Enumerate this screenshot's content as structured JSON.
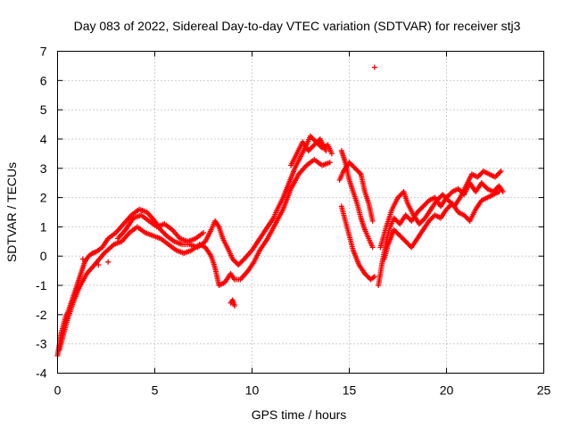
{
  "chart_data": {
    "type": "scatter",
    "title": "Day 083 of 2022, Sidereal Day-to-day VTEC variation (SDTVAR) for receiver stj3",
    "xlabel": "GPS time / hours",
    "ylabel": "SDTVAR / TECUs",
    "xlim": [
      0,
      25
    ],
    "ylim": [
      -4,
      7
    ],
    "xticks": [
      0,
      5,
      10,
      15,
      20,
      25
    ],
    "yticks": [
      -4,
      -3,
      -2,
      -1,
      0,
      1,
      2,
      3,
      4,
      5,
      6,
      7
    ],
    "grid": true,
    "marker": "+",
    "series": [
      {
        "name": "SDTVAR",
        "color": "#ff0000",
        "tracks": [
          [
            [
              0.0,
              -3.4
            ],
            [
              0.1,
              -3.0
            ],
            [
              0.2,
              -2.6
            ],
            [
              0.4,
              -2.1
            ],
            [
              0.6,
              -1.8
            ],
            [
              0.8,
              -1.4
            ],
            [
              1.0,
              -1.0
            ],
            [
              1.2,
              -0.6
            ],
            [
              1.4,
              -0.2
            ],
            [
              1.6,
              0.0
            ],
            [
              1.8,
              0.1
            ],
            [
              2.0,
              0.15
            ],
            [
              2.3,
              0.3
            ],
            [
              2.6,
              0.6
            ],
            [
              3.0,
              0.8
            ],
            [
              3.4,
              1.1
            ],
            [
              3.8,
              1.4
            ],
            [
              4.2,
              1.6
            ],
            [
              4.6,
              1.5
            ],
            [
              5.0,
              1.2
            ],
            [
              5.3,
              0.9
            ],
            [
              5.6,
              0.7
            ],
            [
              6.0,
              0.5
            ],
            [
              6.4,
              0.4
            ],
            [
              6.8,
              0.4
            ],
            [
              7.2,
              0.3
            ],
            [
              7.6,
              0.5
            ],
            [
              7.9,
              0.9
            ],
            [
              8.1,
              1.2
            ],
            [
              8.3,
              1.0
            ],
            [
              8.5,
              0.6
            ],
            [
              8.8,
              0.2
            ],
            [
              9.0,
              -0.1
            ],
            [
              9.3,
              -0.3
            ],
            [
              9.6,
              -0.1
            ],
            [
              10.0,
              0.2
            ],
            [
              10.3,
              0.5
            ],
            [
              10.6,
              0.8
            ],
            [
              10.9,
              1.1
            ],
            [
              11.1,
              1.3
            ],
            [
              11.3,
              1.6
            ],
            [
              11.6,
              2.0
            ],
            [
              11.9,
              2.5
            ],
            [
              12.2,
              3.0
            ],
            [
              12.5,
              3.4
            ],
            [
              12.8,
              3.8
            ],
            [
              13.0,
              4.1
            ],
            [
              13.3,
              3.9
            ],
            [
              13.6,
              3.7
            ],
            [
              13.9,
              3.8
            ],
            [
              14.1,
              3.5
            ]
          ],
          [
            [
              0.1,
              -3.2
            ],
            [
              0.3,
              -2.7
            ],
            [
              0.5,
              -2.2
            ],
            [
              0.8,
              -1.6
            ],
            [
              1.1,
              -1.1
            ],
            [
              1.5,
              -0.6
            ],
            [
              1.9,
              -0.3
            ],
            [
              2.4,
              0.1
            ],
            [
              2.9,
              0.4
            ],
            [
              3.3,
              0.5
            ],
            [
              3.7,
              0.8
            ],
            [
              4.1,
              1.0
            ],
            [
              4.5,
              0.8
            ],
            [
              4.9,
              0.7
            ],
            [
              5.3,
              0.6
            ],
            [
              5.7,
              0.4
            ],
            [
              6.1,
              0.2
            ],
            [
              6.5,
              0.1
            ],
            [
              6.9,
              0.2
            ],
            [
              7.3,
              0.4
            ],
            [
              7.6,
              0.3
            ],
            [
              7.9,
              0.0
            ],
            [
              8.1,
              -0.4
            ],
            [
              8.3,
              -1.0
            ],
            [
              8.6,
              -0.9
            ],
            [
              8.9,
              -0.6
            ],
            [
              9.1,
              -0.8
            ],
            [
              9.4,
              -0.8
            ],
            [
              9.8,
              -0.5
            ],
            [
              10.1,
              -0.2
            ],
            [
              10.4,
              0.2
            ],
            [
              10.8,
              0.6
            ],
            [
              11.2,
              1.1
            ],
            [
              11.6,
              1.6
            ],
            [
              12.0,
              2.3
            ],
            [
              12.4,
              2.8
            ],
            [
              12.8,
              3.1
            ],
            [
              13.2,
              3.3
            ],
            [
              13.6,
              3.1
            ],
            [
              14.0,
              3.2
            ]
          ],
          [
            [
              3.1,
              0.6
            ],
            [
              3.5,
              0.9
            ],
            [
              3.9,
              1.3
            ],
            [
              4.3,
              1.4
            ],
            [
              4.7,
              1.2
            ],
            [
              5.1,
              1.0
            ],
            [
              5.5,
              1.1
            ],
            [
              5.9,
              0.9
            ],
            [
              6.3,
              0.6
            ],
            [
              6.7,
              0.5
            ],
            [
              7.1,
              0.6
            ],
            [
              7.5,
              0.8
            ]
          ],
          [
            [
              8.9,
              -1.6
            ],
            [
              9.0,
              -1.5
            ],
            [
              9.1,
              -1.7
            ]
          ],
          [
            [
              12.0,
              3.1
            ],
            [
              12.3,
              3.5
            ],
            [
              12.6,
              3.9
            ],
            [
              12.9,
              3.6
            ],
            [
              13.2,
              3.8
            ],
            [
              13.5,
              4.0
            ],
            [
              13.8,
              3.6
            ]
          ],
          [
            [
              14.5,
              2.6
            ],
            [
              14.7,
              2.9
            ],
            [
              15.0,
              3.2
            ],
            [
              15.3,
              3.0
            ],
            [
              15.6,
              2.8
            ],
            [
              15.8,
              2.2
            ],
            [
              16.0,
              1.8
            ],
            [
              16.2,
              1.2
            ]
          ],
          [
            [
              14.6,
              3.6
            ],
            [
              14.8,
              3.2
            ],
            [
              15.0,
              2.6
            ],
            [
              15.2,
              2.2
            ],
            [
              15.4,
              1.8
            ],
            [
              15.6,
              1.3
            ],
            [
              15.8,
              0.9
            ],
            [
              16.0,
              0.6
            ],
            [
              16.2,
              0.3
            ]
          ],
          [
            [
              14.6,
              1.7
            ],
            [
              14.8,
              1.2
            ],
            [
              15.0,
              0.7
            ],
            [
              15.2,
              0.2
            ],
            [
              15.5,
              -0.3
            ],
            [
              15.8,
              -0.6
            ],
            [
              16.1,
              -0.8
            ],
            [
              16.3,
              -0.7
            ]
          ],
          [
            [
              16.5,
              -1.0
            ],
            [
              16.7,
              -0.2
            ],
            [
              16.9,
              0.5
            ],
            [
              17.1,
              1.0
            ],
            [
              17.3,
              1.3
            ],
            [
              17.6,
              1.1
            ],
            [
              17.9,
              1.4
            ],
            [
              18.2,
              1.2
            ],
            [
              18.5,
              1.5
            ],
            [
              18.8,
              1.7
            ],
            [
              19.1,
              1.9
            ],
            [
              19.4,
              2.0
            ],
            [
              19.7,
              1.7
            ],
            [
              20.0,
              2.0
            ],
            [
              20.3,
              2.2
            ],
            [
              20.6,
              2.3
            ],
            [
              20.9,
              2.1
            ],
            [
              21.2,
              2.5
            ],
            [
              21.5,
              2.2
            ],
            [
              21.8,
              2.5
            ],
            [
              22.1,
              2.3
            ],
            [
              22.4,
              2.2
            ],
            [
              22.7,
              2.4
            ],
            [
              22.9,
              2.2
            ]
          ],
          [
            [
              16.6,
              0.3
            ],
            [
              16.9,
              1.0
            ],
            [
              17.2,
              1.6
            ],
            [
              17.5,
              2.0
            ],
            [
              17.8,
              2.2
            ],
            [
              18.0,
              1.8
            ],
            [
              18.3,
              1.4
            ],
            [
              18.6,
              1.1
            ],
            [
              18.9,
              1.3
            ],
            [
              19.2,
              1.6
            ],
            [
              19.5,
              1.9
            ],
            [
              19.8,
              2.1
            ],
            [
              20.1,
              1.9
            ],
            [
              20.4,
              1.7
            ],
            [
              20.7,
              2.0
            ],
            [
              21.0,
              2.4
            ],
            [
              21.3,
              2.8
            ],
            [
              21.6,
              2.7
            ],
            [
              21.9,
              2.9
            ],
            [
              22.2,
              2.8
            ],
            [
              22.5,
              2.7
            ],
            [
              22.8,
              2.9
            ]
          ],
          [
            [
              16.8,
              -0.1
            ],
            [
              17.0,
              0.4
            ],
            [
              17.3,
              0.9
            ],
            [
              17.6,
              0.7
            ],
            [
              17.9,
              0.5
            ],
            [
              18.2,
              0.3
            ],
            [
              18.5,
              0.6
            ],
            [
              18.8,
              0.9
            ],
            [
              19.1,
              1.2
            ],
            [
              19.4,
              1.4
            ],
            [
              19.7,
              1.3
            ],
            [
              20.0,
              1.6
            ],
            [
              20.3,
              1.8
            ],
            [
              20.6,
              1.5
            ],
            [
              20.9,
              1.4
            ],
            [
              21.2,
              1.2
            ],
            [
              21.5,
              1.6
            ],
            [
              21.8,
              1.9
            ],
            [
              22.1,
              2.0
            ],
            [
              22.4,
              2.1
            ],
            [
              22.7,
              2.2
            ]
          ]
        ],
        "outliers": [
          [
            16.3,
            6.45
          ],
          [
            1.3,
            -0.1
          ],
          [
            2.1,
            -0.3
          ],
          [
            2.6,
            -0.2
          ]
        ]
      }
    ]
  }
}
